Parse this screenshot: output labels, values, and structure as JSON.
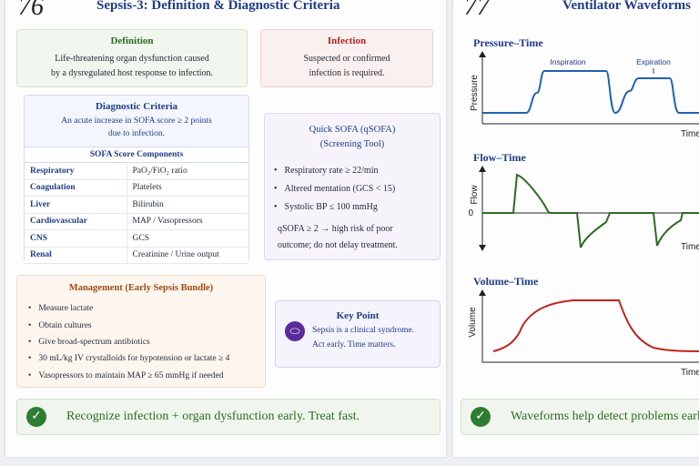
{
  "left_page": {
    "page_number": "76",
    "title": "Sepsis-3: Definition & Diagnostic Criteria",
    "definition": {
      "heading": "Definition",
      "line1": "Life-threatening organ dysfunction caused",
      "line2": "by a dysregulated host response to infection."
    },
    "infection": {
      "heading": "Infection",
      "line1": "Suspected or confirmed",
      "line2": "infection is required."
    },
    "diagnostic": {
      "heading": "Diagnostic Criteria",
      "line1": "An acute increase in SOFA score ≥ 2 points",
      "line2": "due to infection.",
      "table_header": "SOFA Score Components",
      "rows": [
        {
          "organ": "Respiratory",
          "measure": "PaO₂/FiO₂ ratio"
        },
        {
          "organ": "Coagulation",
          "measure": "Platelets"
        },
        {
          "organ": "Liver",
          "measure": "Bilirubin"
        },
        {
          "organ": "Cardiovascular",
          "measure": "MAP / Vasopressors"
        },
        {
          "organ": "CNS",
          "measure": "GCS"
        },
        {
          "organ": "Renal",
          "measure": "Creatinine / Urine output"
        }
      ]
    },
    "qsofa": {
      "heading1": "Quick SOFA (qSOFA)",
      "heading2": "(Screening Tool)",
      "items": [
        "Respiratory rate ≥ 22/min",
        "Altered mentation (GCS < 15)",
        "Systolic BP ≤ 100 mmHg"
      ],
      "note1": "qSOFA ≥ 2 → high risk of poor",
      "note2": "outcome; do not delay treatment."
    },
    "management": {
      "heading": "Management (Early Sepsis Bundle)",
      "items": [
        "Measure lactate",
        "Obtain cultures",
        "Give broad-spectrum antibiotics",
        "30 mL/kg IV crystalloids for hypotension or lactate ≥ 4",
        "Vasopressors to maintain MAP ≥ 65 mmHg if needed"
      ]
    },
    "key_point": {
      "heading": "Key Point",
      "line1": "Sepsis is a clinical syndrome.",
      "line2": "Act early. Time matters."
    },
    "banner": "Recognize infection + organ dysfunction early. Treat fast."
  },
  "right_page": {
    "page_number": "77",
    "title": "Ventilator Waveforms",
    "plots": {
      "pressure": {
        "title": "Pressure–Time",
        "ylabel": "Pressure",
        "xlabel": "Time",
        "annot_insp": "Inspiration",
        "annot_exp": "Expiration"
      },
      "flow": {
        "title": "Flow–Time",
        "ylabel": "Flow",
        "xlabel": "Time",
        "zero_label": "0"
      },
      "volume": {
        "title": "Volume–Time",
        "ylabel": "Volume",
        "xlabel": "Time"
      }
    },
    "banner": "Waveforms help detect problems early."
  },
  "colors": {
    "pressure_line": "#1e63b0",
    "flow_line": "#2e6b22",
    "volume_line": "#c0241c",
    "title_blue": "#1f3c88"
  }
}
